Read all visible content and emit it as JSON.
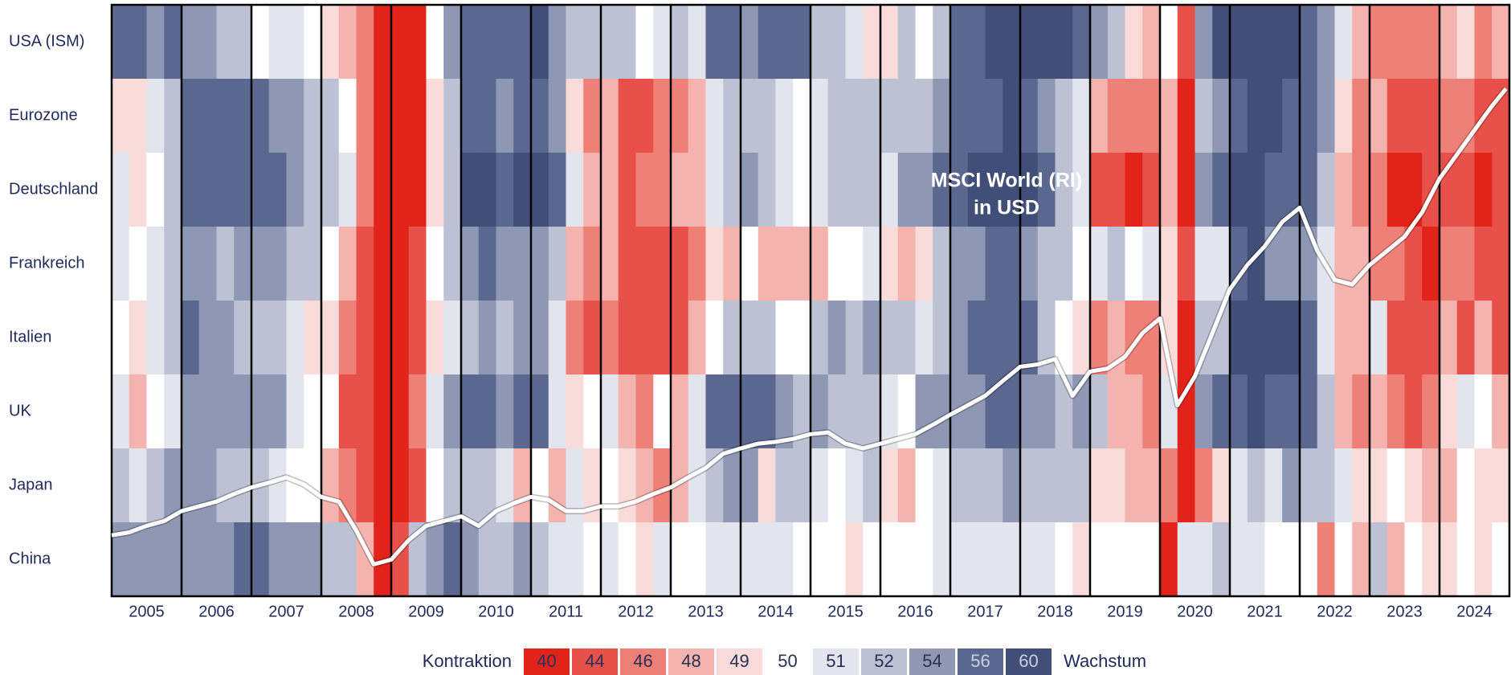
{
  "chart_data": {
    "type": "heatmap",
    "categories": [
      "2005",
      "2006",
      "2007",
      "2008",
      "2009",
      "2010",
      "2011",
      "2012",
      "2013",
      "2014",
      "2015",
      "2016",
      "2017",
      "2018",
      "2019",
      "2020",
      "2021",
      "2022",
      "2023",
      "2024"
    ],
    "xlim": [
      2005,
      2025
    ],
    "rows": [
      {
        "name": "USA (ISM)",
        "values": [
          56,
          56,
          54,
          56,
          55,
          54,
          53,
          52,
          50,
          51,
          51,
          50,
          49,
          48,
          46,
          40,
          36,
          42,
          50,
          54,
          58,
          58,
          56,
          57,
          60,
          55,
          52,
          53,
          53,
          52,
          50,
          51,
          53,
          51,
          56,
          57,
          54,
          56,
          57,
          57,
          53,
          52,
          51,
          49,
          49,
          52,
          50,
          53,
          56,
          56,
          59,
          59,
          60,
          59,
          60,
          57,
          55,
          52,
          49,
          48,
          50,
          43,
          55,
          60,
          60,
          61,
          60,
          60,
          58,
          55,
          51,
          48,
          47,
          46,
          47,
          47,
          48,
          49,
          47,
          48
        ]
      },
      {
        "name": "Eurozone",
        "values": [
          49,
          49,
          51,
          53,
          56,
          57,
          57,
          57,
          56,
          55,
          54,
          53,
          52,
          50,
          46,
          38,
          35,
          41,
          49,
          52,
          56,
          56,
          55,
          57,
          58,
          55,
          49,
          47,
          48,
          45,
          45,
          46,
          47,
          48,
          51,
          52,
          53,
          52,
          51,
          50,
          51,
          52,
          52,
          53,
          52,
          53,
          53,
          54,
          56,
          57,
          58,
          60,
          58,
          55,
          53,
          51,
          48,
          47,
          46,
          46,
          48,
          38,
          52,
          54,
          58,
          63,
          60,
          58,
          57,
          54,
          49,
          47,
          48,
          44,
          43,
          44,
          46,
          46,
          45,
          45
        ]
      },
      {
        "name": "Deutschland",
        "values": [
          51,
          49,
          50,
          53,
          57,
          58,
          57,
          58,
          57,
          56,
          54,
          53,
          53,
          51,
          47,
          36,
          33,
          40,
          49,
          52,
          59,
          59,
          58,
          59,
          61,
          57,
          51,
          48,
          48,
          45,
          46,
          46,
          48,
          48,
          51,
          53,
          54,
          52,
          51,
          50,
          51,
          52,
          52,
          52,
          51,
          54,
          54,
          56,
          57,
          59,
          61,
          63,
          60,
          56,
          53,
          51,
          45,
          44,
          42,
          44,
          48,
          40,
          55,
          58,
          66,
          65,
          58,
          57,
          56,
          52,
          48,
          47,
          46,
          42,
          39,
          43,
          43,
          44,
          42,
          43
        ]
      },
      {
        "name": "Frankreich",
        "values": [
          51,
          50,
          51,
          52,
          54,
          55,
          53,
          54,
          54,
          54,
          53,
          52,
          50,
          48,
          45,
          38,
          40,
          44,
          50,
          53,
          55,
          56,
          54,
          55,
          55,
          53,
          48,
          47,
          48,
          45,
          43,
          44,
          43,
          47,
          49,
          48,
          50,
          48,
          48,
          48,
          48,
          50,
          50,
          51,
          49,
          48,
          49,
          53,
          54,
          55,
          56,
          58,
          55,
          53,
          53,
          50,
          51,
          52,
          50,
          51,
          49,
          45,
          51,
          51,
          56,
          59,
          55,
          55,
          55,
          51,
          48,
          48,
          47,
          46,
          44,
          42,
          46,
          46,
          45,
          43
        ]
      },
      {
        "name": "Italien",
        "values": [
          50,
          49,
          51,
          53,
          56,
          55,
          54,
          53,
          52,
          52,
          51,
          49,
          49,
          47,
          45,
          37,
          38,
          43,
          49,
          51,
          53,
          54,
          52,
          55,
          54,
          51,
          47,
          44,
          47,
          44,
          44,
          45,
          45,
          48,
          50,
          52,
          52,
          53,
          50,
          50,
          52,
          54,
          53,
          55,
          53,
          53,
          51,
          53,
          55,
          56,
          57,
          57,
          56,
          53,
          50,
          49,
          47,
          48,
          47,
          47,
          49,
          40,
          52,
          53,
          59,
          62,
          60,
          62,
          56,
          51,
          48,
          48,
          51,
          45,
          45,
          45,
          48,
          45,
          48,
          45
        ]
      },
      {
        "name": "UK",
        "values": [
          51,
          48,
          50,
          51,
          55,
          54,
          54,
          54,
          55,
          54,
          51,
          50,
          50,
          44,
          44,
          36,
          39,
          46,
          51,
          54,
          57,
          58,
          54,
          57,
          56,
          51,
          49,
          50,
          51,
          48,
          47,
          50,
          48,
          51,
          56,
          58,
          56,
          57,
          54,
          53,
          54,
          52,
          52,
          52,
          51,
          50,
          54,
          55,
          55,
          54,
          56,
          57,
          55,
          54,
          53,
          54,
          53,
          48,
          48,
          47,
          51,
          40,
          55,
          57,
          57,
          64,
          58,
          57,
          56,
          53,
          48,
          46,
          48,
          47,
          44,
          47,
          49,
          51,
          50,
          48
        ]
      },
      {
        "name": "Japan",
        "values": [
          52,
          51,
          53,
          54,
          54,
          54,
          53,
          53,
          52,
          51,
          50,
          50,
          48,
          47,
          45,
          37,
          33,
          43,
          50,
          52,
          53,
          53,
          51,
          48,
          50,
          48,
          51,
          49,
          50,
          49,
          48,
          46,
          48,
          51,
          52,
          55,
          55,
          49,
          52,
          52,
          51,
          50,
          51,
          52,
          49,
          48,
          50,
          51,
          52,
          53,
          52,
          54,
          53,
          53,
          52,
          52,
          49,
          49,
          48,
          48,
          46,
          38,
          46,
          49,
          51,
          53,
          51,
          54,
          53,
          53,
          51,
          49,
          49,
          50,
          49,
          48,
          48,
          50,
          49,
          49
        ]
      },
      {
        "name": "China",
        "values": [
          54,
          54,
          54,
          54,
          54,
          54,
          54,
          56,
          56,
          55,
          54,
          55,
          53,
          52,
          48,
          40,
          44,
          52,
          55,
          56,
          55,
          53,
          52,
          55,
          53,
          51,
          51,
          50,
          51,
          50,
          49,
          51,
          50,
          50,
          51,
          51,
          51,
          51,
          51,
          50,
          50,
          50,
          49,
          50,
          50,
          50,
          50,
          51,
          51,
          51,
          51,
          51,
          51,
          51,
          50,
          49,
          50,
          50,
          50,
          50,
          38,
          51,
          51,
          52,
          51,
          51,
          50,
          50,
          50,
          47,
          50,
          48,
          52,
          48,
          50,
          49,
          49,
          50,
          49,
          50
        ]
      }
    ],
    "line": {
      "color": "#ffffff",
      "ylim": [
        0,
        100
      ],
      "x": [
        2005,
        2005.25,
        2005.5,
        2005.75,
        2006,
        2006.25,
        2006.5,
        2006.75,
        2007,
        2007.25,
        2007.5,
        2007.75,
        2008,
        2008.25,
        2008.5,
        2008.75,
        2009,
        2009.25,
        2009.5,
        2009.75,
        2010,
        2010.25,
        2010.5,
        2010.75,
        2011,
        2011.25,
        2011.5,
        2011.75,
        2012,
        2012.25,
        2012.5,
        2012.75,
        2013,
        2013.25,
        2013.5,
        2013.75,
        2014,
        2014.25,
        2014.5,
        2014.75,
        2015,
        2015.25,
        2015.5,
        2015.75,
        2016,
        2016.25,
        2016.5,
        2016.75,
        2017,
        2017.25,
        2017.5,
        2017.75,
        2018,
        2018.25,
        2018.5,
        2018.75,
        2019,
        2019.25,
        2019.5,
        2019.75,
        2020,
        2020.25,
        2020.5,
        2020.75,
        2021,
        2021.25,
        2021.5,
        2021.75,
        2022,
        2022.25,
        2022.5,
        2022.75,
        2023,
        2023.25,
        2023.5,
        2023.75,
        2024,
        2024.25,
        2024.5,
        2024.75,
        2024.95
      ],
      "values": [
        10.3,
        10.8,
        11.9,
        12.7,
        14.4,
        15.2,
        16.0,
        17.3,
        18.4,
        19.2,
        20.1,
        18.9,
        16.8,
        16.0,
        11.1,
        5.4,
        6.2,
        9.5,
        11.9,
        12.7,
        13.5,
        11.9,
        14.4,
        15.7,
        16.8,
        16.3,
        14.4,
        14.4,
        15.2,
        15.2,
        16.0,
        17.3,
        18.4,
        20.1,
        21.7,
        24.1,
        25.0,
        25.8,
        26.1,
        26.6,
        27.4,
        27.7,
        25.8,
        25.0,
        25.8,
        26.6,
        27.4,
        29.0,
        30.7,
        32.3,
        33.9,
        36.4,
        38.8,
        39.2,
        40.1,
        33.9,
        38.0,
        38.5,
        40.5,
        44.5,
        47.0,
        32.3,
        37.2,
        44.5,
        51.9,
        56.0,
        59.2,
        63.3,
        65.7,
        58.4,
        53.5,
        52.7,
        56.0,
        58.4,
        60.8,
        64.9,
        70.6,
        74.7,
        78.8,
        82.9,
        85.8
      ]
    },
    "annotation": [
      "MSCI World (RI)",
      "in USD"
    ],
    "legend": {
      "low_label": "Kontraktion",
      "high_label": "Wachstum",
      "bins": [
        {
          "value": 40,
          "color": "#e2231a"
        },
        {
          "value": 44,
          "color": "#e8514a"
        },
        {
          "value": 46,
          "color": "#ee8078"
        },
        {
          "value": 48,
          "color": "#f4b3ae"
        },
        {
          "value": 49,
          "color": "#f9dcda"
        },
        {
          "value": 50,
          "color": "#ffffff"
        },
        {
          "value": 51,
          "color": "#e2e5ee"
        },
        {
          "value": 52,
          "color": "#bcc2d4"
        },
        {
          "value": 54,
          "color": "#8e97b3"
        },
        {
          "value": 56,
          "color": "#5b678f"
        },
        {
          "value": 60,
          "color": "#414e78"
        }
      ]
    }
  }
}
